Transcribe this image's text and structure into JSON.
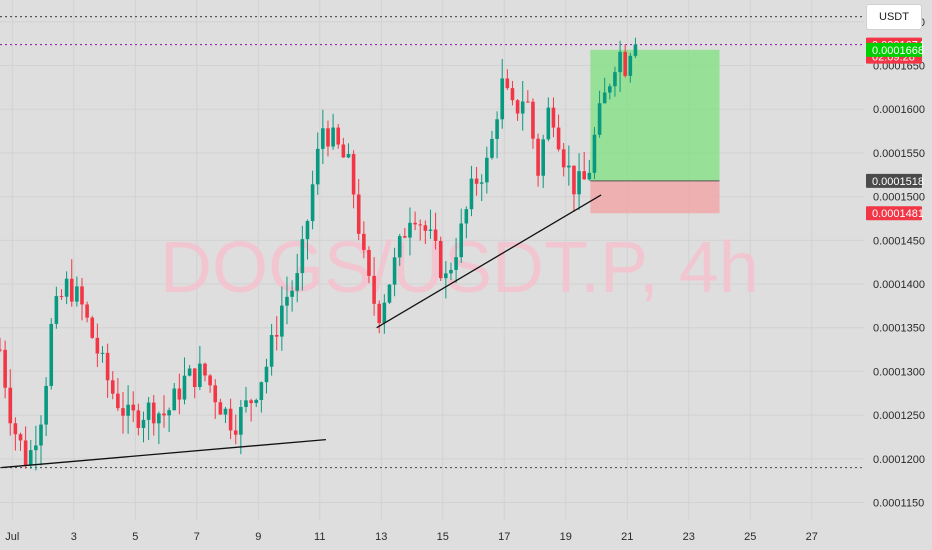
{
  "currency_button": "USDT",
  "chart_data": {
    "type": "candlestick",
    "watermark": "DOGS/USDT.P, 4h",
    "y_axis": {
      "ylim": [
        0.000113,
        0.0001725
      ],
      "ticks": [
        "0.0001150",
        "0.0001200",
        "0.0001250",
        "0.0001300",
        "0.0001350",
        "0.0001400",
        "0.0001450",
        "0.0001500",
        "0.0001550",
        "0.0001600",
        "0.0001650",
        "0.0001700"
      ],
      "tick_values": [
        0.000115,
        0.00012,
        0.000125,
        0.00013,
        0.000135,
        0.00014,
        0.000145,
        0.00015,
        0.000155,
        0.00016,
        0.000165,
        0.00017
      ]
    },
    "x_axis": {
      "labels": [
        "Jul",
        "3",
        "5",
        "7",
        "9",
        "11",
        "13",
        "15",
        "17",
        "19",
        "21",
        "23",
        "25",
        "27"
      ],
      "label_days": [
        1,
        3,
        5,
        7,
        9,
        11,
        13,
        15,
        17,
        19,
        21,
        23,
        25,
        27
      ],
      "xlim_days": [
        0.6,
        28.7
      ]
    },
    "price_tags": [
      {
        "lines": [
          "0.0001674",
          "02:09:28"
        ],
        "value": 0.0001674,
        "color": "#f23645"
      },
      {
        "lines": [
          "0.0001668"
        ],
        "value": 0.0001668,
        "color": "#00d000",
        "text_color": "#000000"
      },
      {
        "lines": [
          "0.0001518"
        ],
        "value": 0.0001518,
        "color": "#4a4a4a"
      },
      {
        "lines": [
          "0.0001481"
        ],
        "value": 0.0001481,
        "color": "#f23645"
      }
    ],
    "horizontal_lines": [
      {
        "value": 0.0001706,
        "style": "dotted",
        "color": "#555555"
      },
      {
        "value": 0.0001674,
        "style": "dotted",
        "color": "#9c27b0"
      },
      {
        "value": 0.000119,
        "style": "dotted",
        "color": "#555555"
      }
    ],
    "trendlines": [
      {
        "from": [
          0.65,
          0.000119
        ],
        "to": [
          11.2,
          0.0001222
        ]
      },
      {
        "from": [
          12.85,
          0.000135
        ],
        "to": [
          20.15,
          0.0001502
        ]
      }
    ],
    "position": {
      "entry": 0.0001518,
      "stop": 0.0001481,
      "target": 0.0001668,
      "start_day": 19.8,
      "end_day": 24.0,
      "profit_color": "#7fe07f",
      "loss_color": "#f3a0a0"
    },
    "candle_colors": {
      "up": "#089981",
      "down": "#f23645"
    },
    "candle_keypoints": [
      [
        0.6,
        0.0001325
      ],
      [
        1.0,
        0.000124
      ],
      [
        1.5,
        0.0001195
      ],
      [
        2.0,
        0.000126
      ],
      [
        2.3,
        0.000136
      ],
      [
        2.8,
        0.00014
      ],
      [
        3.2,
        0.000138
      ],
      [
        3.6,
        0.000134
      ],
      [
        4.2,
        0.000128
      ],
      [
        4.8,
        0.0001245
      ],
      [
        5.5,
        0.0001258
      ],
      [
        6.0,
        0.000125
      ],
      [
        6.6,
        0.000129
      ],
      [
        7.2,
        0.00013
      ],
      [
        7.8,
        0.000126
      ],
      [
        8.2,
        0.000124
      ],
      [
        8.8,
        0.000127
      ],
      [
        9.3,
        0.000131
      ],
      [
        9.8,
        0.000138
      ],
      [
        10.3,
        0.0001405
      ],
      [
        10.8,
        0.000152
      ],
      [
        11.1,
        0.000158
      ],
      [
        11.5,
        0.000156
      ],
      [
        12.0,
        0.000153
      ],
      [
        12.5,
        0.000141
      ],
      [
        12.9,
        0.0001365
      ],
      [
        13.5,
        0.000143
      ],
      [
        14.0,
        0.000149
      ],
      [
        14.6,
        0.000145
      ],
      [
        15.1,
        0.0001405
      ],
      [
        15.6,
        0.000146
      ],
      [
        16.0,
        0.0001515
      ],
      [
        16.5,
        0.000154
      ],
      [
        16.9,
        0.000163
      ],
      [
        17.3,
        0.0001595
      ],
      [
        17.7,
        0.000162
      ],
      [
        18.1,
        0.000153
      ],
      [
        18.5,
        0.000161
      ],
      [
        18.9,
        0.000155
      ],
      [
        19.3,
        0.000151
      ],
      [
        19.7,
        0.000152
      ],
      [
        20.0,
        0.000158
      ],
      [
        20.4,
        0.000163
      ],
      [
        20.7,
        0.000167
      ],
      [
        20.95,
        0.000165
      ],
      [
        21.15,
        0.000168
      ],
      [
        21.35,
        0.0001674
      ]
    ]
  }
}
